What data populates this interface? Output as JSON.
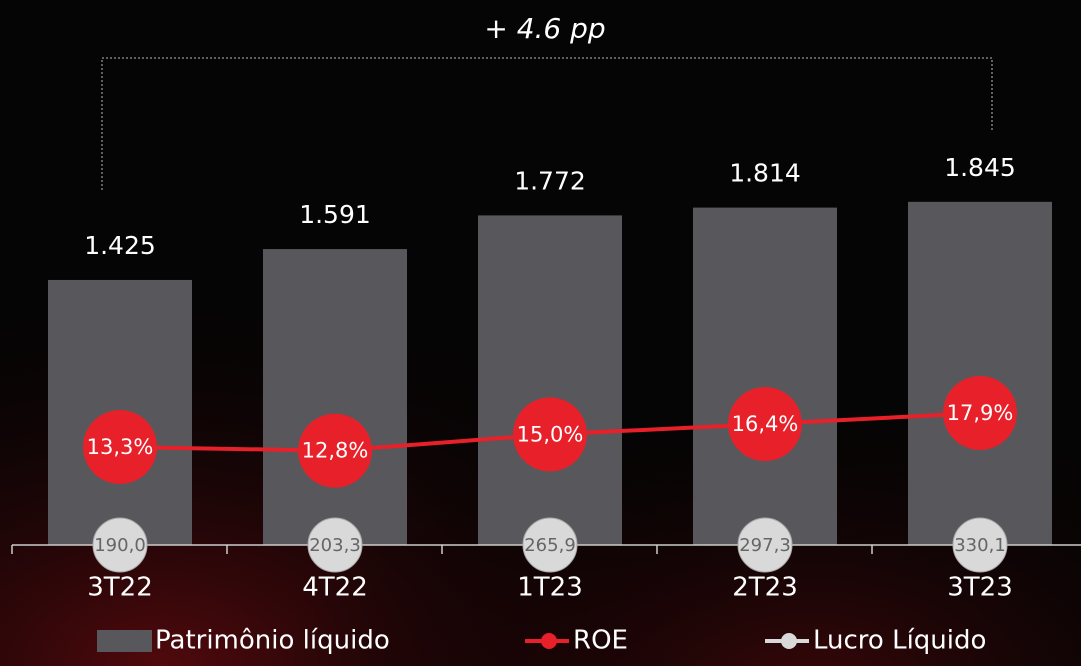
{
  "chart_data": {
    "type": "bar_line",
    "annotation": "+ 4.6 pp",
    "categories": [
      "3T22",
      "4T22",
      "1T23",
      "2T23",
      "3T23"
    ],
    "series": [
      {
        "name": "Patrimônio líquido",
        "type": "bar",
        "color": "#58585c",
        "values": [
          1425,
          1591,
          1772,
          1814,
          1845
        ],
        "value_labels": [
          "1.425",
          "1.591",
          "1.772",
          "1.814",
          "1.845"
        ]
      },
      {
        "name": "ROE",
        "type": "line",
        "color": "#e8202a",
        "values": [
          13.3,
          12.8,
          15.0,
          16.4,
          17.9
        ],
        "value_labels": [
          "13,3%",
          "12,8%",
          "15,0%",
          "16,4%",
          "17,9%"
        ]
      },
      {
        "name": "Lucro Líquido",
        "type": "dots",
        "color": "#d9d9d9",
        "values": [
          190.0,
          203.3,
          265.9,
          297.3,
          330.1
        ],
        "value_labels": [
          "190,0",
          "203,3",
          "265,9",
          "297,3",
          "330,1"
        ]
      }
    ]
  }
}
